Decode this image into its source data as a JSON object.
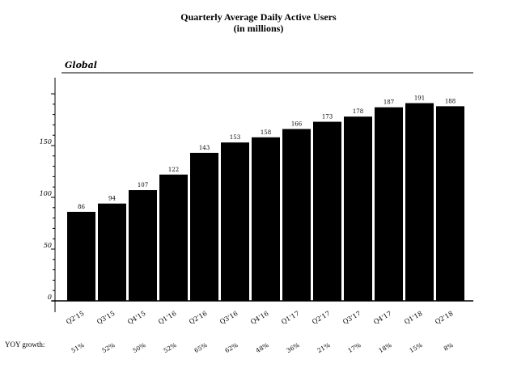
{
  "chart_data": {
    "type": "bar",
    "title": "Quarterly Average Daily Active Users",
    "subtitle": "(in millions)",
    "region_label": "Global",
    "categories": [
      "Q2'15",
      "Q3'15",
      "Q4'15",
      "Q1'16",
      "Q2'16",
      "Q3'16",
      "Q4'16",
      "Q1'17",
      "Q2'17",
      "Q3'17",
      "Q4'17",
      "Q1'18",
      "Q2'18"
    ],
    "values": [
      86,
      94,
      107,
      122,
      143,
      153,
      158,
      166,
      173,
      178,
      187,
      191,
      188
    ],
    "yoy_growth_label": "YOY growth:",
    "yoy_growth": [
      "51%",
      "52%",
      "50%",
      "52%",
      "65%",
      "62%",
      "48%",
      "36%",
      "21%",
      "17%",
      "18%",
      "15%",
      "8%"
    ],
    "yticks": [
      0,
      50,
      100,
      150
    ],
    "ylim": [
      0,
      200
    ],
    "xlabel": "",
    "ylabel": "",
    "grid": false,
    "bar_color": "#000000",
    "axis_color": "#000000"
  }
}
